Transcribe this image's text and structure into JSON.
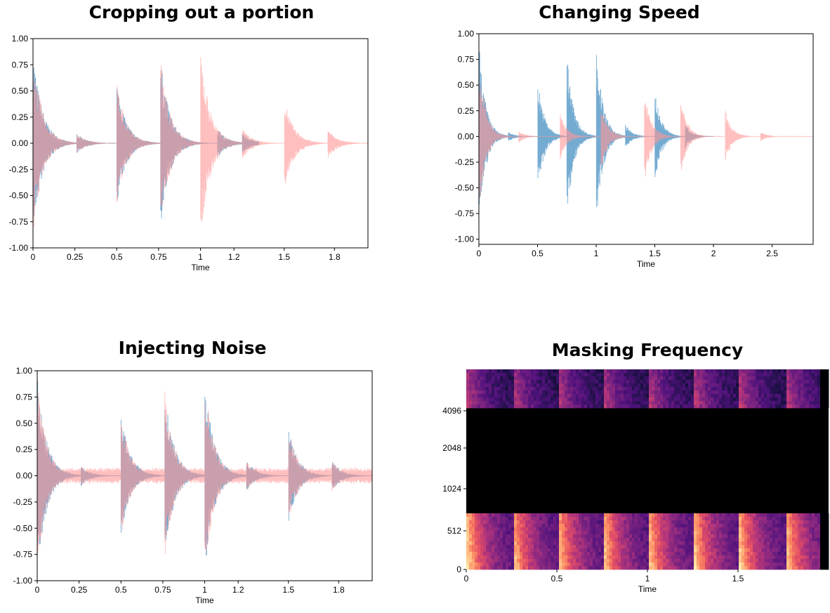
{
  "chart_data": [
    {
      "type": "line",
      "title": "Cropping out a portion",
      "xlabel": "Time",
      "ylabel": "",
      "xlim": [
        0,
        2.0
      ],
      "ylim": [
        -1.0,
        1.0
      ],
      "xticks": [
        0,
        0.25,
        0.5,
        0.75,
        1,
        1.2,
        1.5,
        1.8
      ],
      "xtick_labels": [
        "0",
        "0.25",
        "0.5",
        "0.75",
        "1",
        "1.2",
        "1.5",
        "1.8"
      ],
      "yticks": [
        1.0,
        0.75,
        0.5,
        0.25,
        0.0,
        -0.25,
        -0.5,
        -0.75,
        -1.0
      ],
      "ytick_labels": [
        "1.00",
        "0.75",
        "0.50",
        "0.25",
        "0.00",
        "-0.25",
        "-0.50",
        "-0.75",
        "-1.00"
      ],
      "series": [
        {
          "color": "#1f77b4",
          "end": 1.35,
          "onsets": [
            [
              0.0,
              0.9
            ],
            [
              0.26,
              0.1
            ],
            [
              0.5,
              0.6
            ],
            [
              0.76,
              0.84
            ],
            [
              1.1,
              0.15
            ],
            [
              1.25,
              0.1
            ]
          ]
        },
        {
          "color": "#ff9896",
          "end": 2.0,
          "onsets": [
            [
              0.0,
              0.9
            ],
            [
              0.26,
              0.1
            ],
            [
              0.5,
              0.6
            ],
            [
              0.76,
              0.84
            ],
            [
              1.0,
              0.94
            ],
            [
              1.25,
              0.15
            ],
            [
              1.5,
              0.46
            ],
            [
              1.76,
              0.15
            ]
          ]
        }
      ]
    },
    {
      "type": "line",
      "title": "Changing Speed",
      "xlabel": "Time",
      "ylabel": "",
      "xlim": [
        0,
        2.85
      ],
      "ylim": [
        -1.05,
        1.0
      ],
      "xticks": [
        0,
        0.5,
        1,
        1.5,
        2,
        2.5
      ],
      "xtick_labels": [
        "0",
        "0.5",
        "1",
        "1.5",
        "2",
        "2.5"
      ],
      "yticks": [
        1.0,
        0.75,
        0.5,
        0.25,
        0.0,
        -0.25,
        -0.5,
        -0.75,
        -1.0
      ],
      "ytick_labels": [
        "1.00",
        "0.75",
        "0.50",
        "0.25",
        "0.00",
        "-0.25",
        "-0.50",
        "-0.75",
        "-1.00"
      ],
      "series": [
        {
          "color": "#1f77b4",
          "end": 2.0,
          "onsets": [
            [
              0.0,
              0.95
            ],
            [
              0.25,
              0.05
            ],
            [
              0.5,
              0.6
            ],
            [
              0.75,
              0.84
            ],
            [
              1.0,
              0.94
            ],
            [
              1.25,
              0.12
            ],
            [
              1.5,
              0.46
            ],
            [
              1.76,
              0.12
            ]
          ]
        },
        {
          "color": "#ff9896",
          "end": 2.85,
          "onsets": [
            [
              0.0,
              0.8
            ],
            [
              0.34,
              0.06
            ],
            [
              0.69,
              0.25
            ],
            [
              1.04,
              0.35
            ],
            [
              1.41,
              0.5
            ],
            [
              1.72,
              0.4
            ],
            [
              2.1,
              0.27
            ],
            [
              2.4,
              0.05
            ]
          ]
        }
      ]
    },
    {
      "type": "line",
      "title": "Injecting Noise",
      "xlabel": "Time",
      "ylabel": "",
      "xlim": [
        0,
        2.0
      ],
      "ylim": [
        -1.0,
        1.0
      ],
      "xticks": [
        0,
        0.25,
        0.5,
        0.75,
        1,
        1.2,
        1.5,
        1.8
      ],
      "xtick_labels": [
        "0",
        "0.25",
        "0.5",
        "0.75",
        "1",
        "1.2",
        "1.5",
        "1.8"
      ],
      "yticks": [
        1.0,
        0.75,
        0.5,
        0.25,
        0.0,
        -0.25,
        -0.5,
        -0.75,
        -1.0
      ],
      "ytick_labels": [
        "1.00",
        "0.75",
        "0.50",
        "0.25",
        "0.00",
        "-0.25",
        "-0.50",
        "-0.75",
        "-1.00"
      ],
      "noise_level": 0.08,
      "series": [
        {
          "color": "#1f77b4",
          "end": 2.0,
          "onsets": [
            [
              0.0,
              0.95
            ],
            [
              0.26,
              0.1
            ],
            [
              0.5,
              0.6
            ],
            [
              0.76,
              0.84
            ],
            [
              1.0,
              0.94
            ],
            [
              1.25,
              0.15
            ],
            [
              1.5,
              0.46
            ],
            [
              1.76,
              0.15
            ]
          ]
        },
        {
          "color": "#ff9896",
          "end": 2.0,
          "onsets": [
            [
              0.0,
              0.95
            ],
            [
              0.26,
              0.1
            ],
            [
              0.5,
              0.6
            ],
            [
              0.76,
              0.84
            ],
            [
              1.0,
              0.94
            ],
            [
              1.25,
              0.15
            ],
            [
              1.5,
              0.46
            ],
            [
              1.76,
              0.15
            ]
          ]
        }
      ]
    },
    {
      "type": "heatmap",
      "title": "Masking Frequency",
      "xlabel": "Time",
      "ylabel": "",
      "xlim": [
        0,
        2.0
      ],
      "xticks": [
        0,
        0.5,
        1,
        1.5
      ],
      "xtick_labels": [
        "0",
        "0.5",
        "1",
        "1.5"
      ],
      "yticks": [
        0,
        512,
        1024,
        2048,
        4096
      ],
      "ytick_labels": [
        "0",
        "512",
        "1024",
        "2048",
        "4096"
      ],
      "colormap": "magma",
      "masked_band": [
        760,
        4096
      ],
      "onsets": [
        0.0,
        0.25,
        0.5,
        0.75,
        1.0,
        1.25,
        1.5,
        1.76
      ]
    }
  ]
}
